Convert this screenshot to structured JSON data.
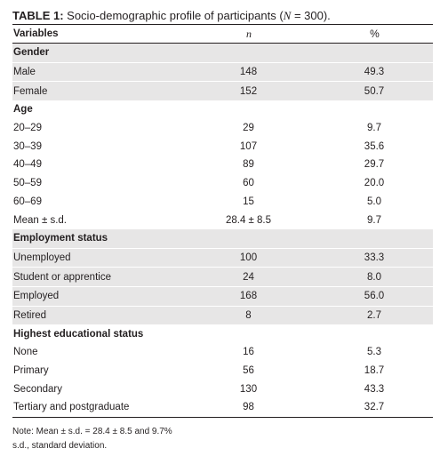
{
  "caption": {
    "label": "TABLE 1:",
    "text_before": " Socio-demographic profile of participants (",
    "n_symbol": "N",
    "text_after": " = 300)."
  },
  "header": {
    "col1": "Variables",
    "col2": "n",
    "col3": "%"
  },
  "sections": [
    {
      "title": "Gender",
      "shaded": true,
      "rows": [
        {
          "label": "Male",
          "n": "148",
          "pct": "49.3"
        },
        {
          "label": "Female",
          "n": "152",
          "pct": "50.7"
        }
      ]
    },
    {
      "title": "Age",
      "shaded": false,
      "rows": [
        {
          "label": "20–29",
          "n": "29",
          "pct": "9.7"
        },
        {
          "label": "30–39",
          "n": "107",
          "pct": "35.6"
        },
        {
          "label": "40–49",
          "n": "89",
          "pct": "29.7"
        },
        {
          "label": "50–59",
          "n": "60",
          "pct": "20.0"
        },
        {
          "label": "60–69",
          "n": "15",
          "pct": "5.0"
        },
        {
          "label": "Mean ± s.d.",
          "n": "28.4 ± 8.5",
          "pct": "9.7"
        }
      ]
    },
    {
      "title": "Employment status",
      "shaded": true,
      "rows": [
        {
          "label": "Unemployed",
          "n": "100",
          "pct": "33.3"
        },
        {
          "label": "Student or apprentice",
          "n": "24",
          "pct": "8.0"
        },
        {
          "label": "Employed",
          "n": "168",
          "pct": "56.0"
        },
        {
          "label": "Retired",
          "n": "8",
          "pct": "2.7"
        }
      ]
    },
    {
      "title": "Highest educational status",
      "shaded": false,
      "rows": [
        {
          "label": "None",
          "n": "16",
          "pct": "5.3"
        },
        {
          "label": "Primary",
          "n": "56",
          "pct": "18.7"
        },
        {
          "label": "Secondary",
          "n": "130",
          "pct": "43.3"
        },
        {
          "label": "Tertiary and postgraduate",
          "n": "98",
          "pct": "32.7"
        }
      ]
    }
  ],
  "notes": [
    "Note: Mean ± s.d. = 28.4 ± 8.5 and 9.7%",
    "s.d., standard deviation."
  ]
}
